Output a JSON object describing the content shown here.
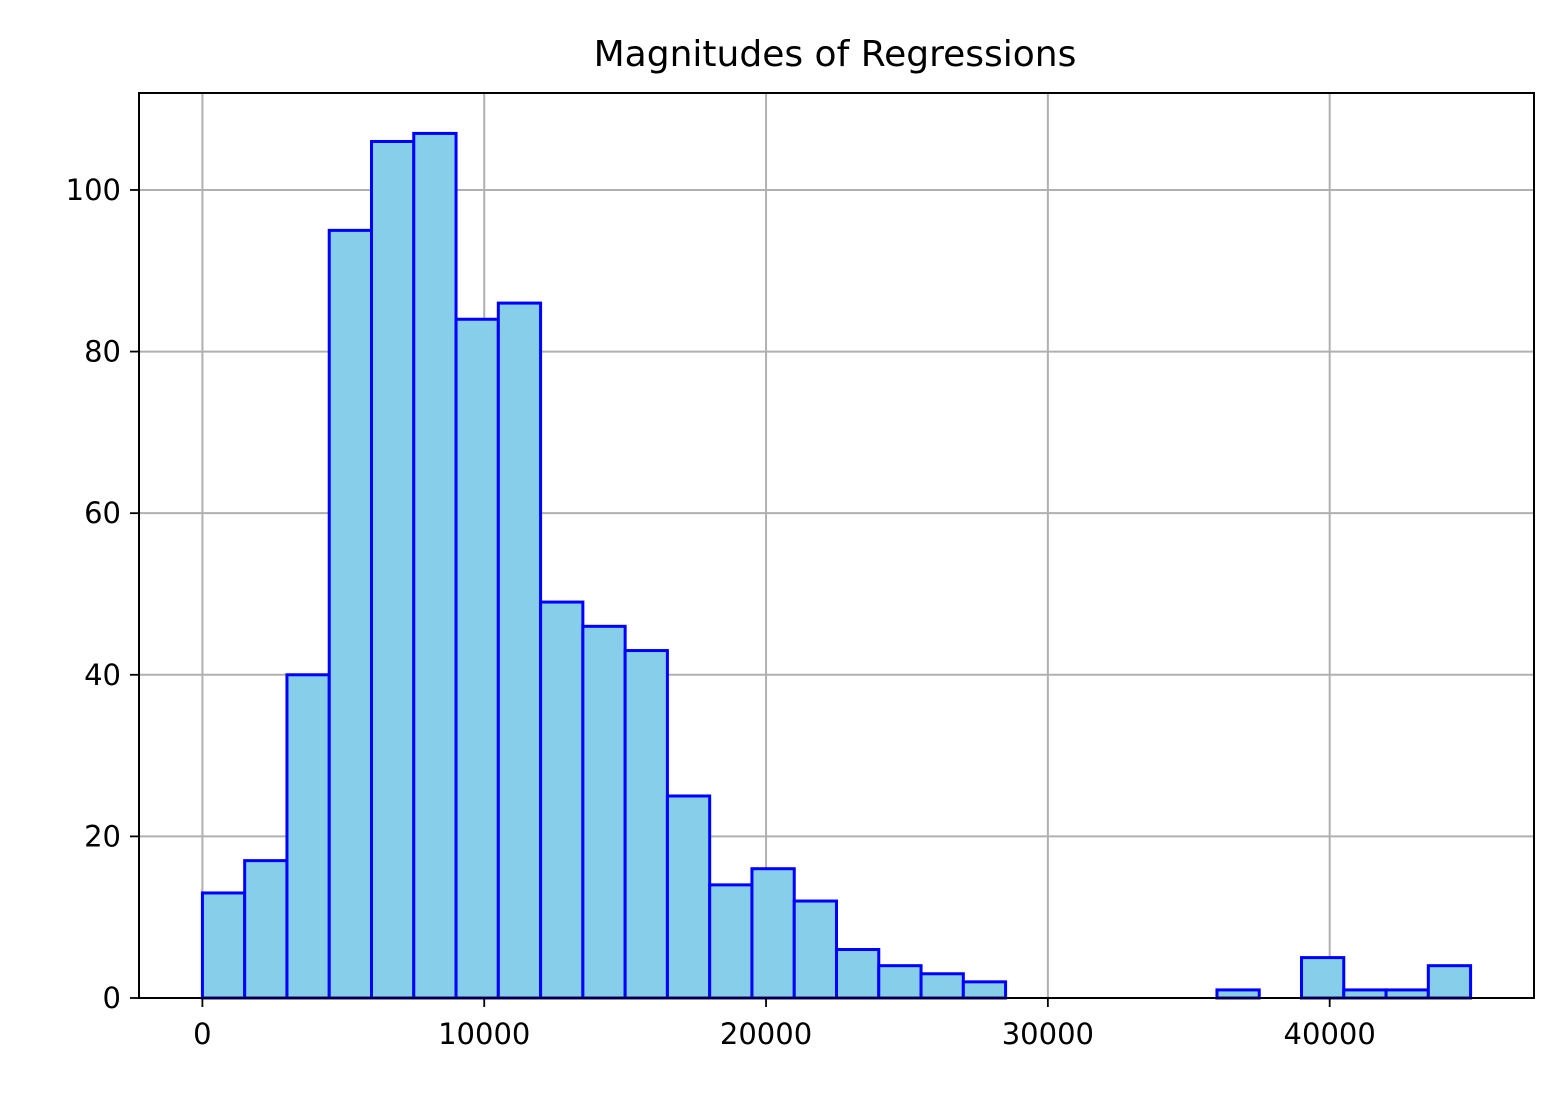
{
  "chart_data": {
    "type": "bar",
    "title": "Magnitudes of Regressions",
    "xlabel": "",
    "ylabel": "",
    "bin_width": 1500,
    "bin_start": 0,
    "bin_end": 45000,
    "x": [
      0,
      1500,
      3000,
      4500,
      6000,
      7500,
      9000,
      10500,
      12000,
      13500,
      15000,
      16500,
      18000,
      19500,
      21000,
      22500,
      24000,
      25500,
      27000,
      28500,
      30000,
      31500,
      33000,
      34500,
      36000,
      37500,
      39000,
      40500,
      42000,
      43500
    ],
    "values": [
      13,
      17,
      40,
      95,
      106,
      107,
      84,
      86,
      49,
      46,
      43,
      25,
      14,
      16,
      12,
      6,
      4,
      3,
      2,
      0,
      0,
      0,
      0,
      0,
      1,
      0,
      5,
      1,
      1,
      4
    ],
    "xlim": [
      -2250,
      47250
    ],
    "ylim": [
      0,
      112
    ],
    "xticks": [
      0,
      10000,
      20000,
      30000,
      40000
    ],
    "xtick_labels": [
      "0",
      "10000",
      "20000",
      "30000",
      "40000"
    ],
    "yticks": [
      0,
      20,
      40,
      60,
      80,
      100
    ],
    "ytick_labels": [
      "0",
      "20",
      "40",
      "60",
      "80",
      "100"
    ],
    "grid": true,
    "legend": "none",
    "colors": {
      "bar_fill": "#87ceeb",
      "bar_edge": "#0000ff",
      "grid": "#b0b0b0",
      "frame": "#000000"
    }
  }
}
